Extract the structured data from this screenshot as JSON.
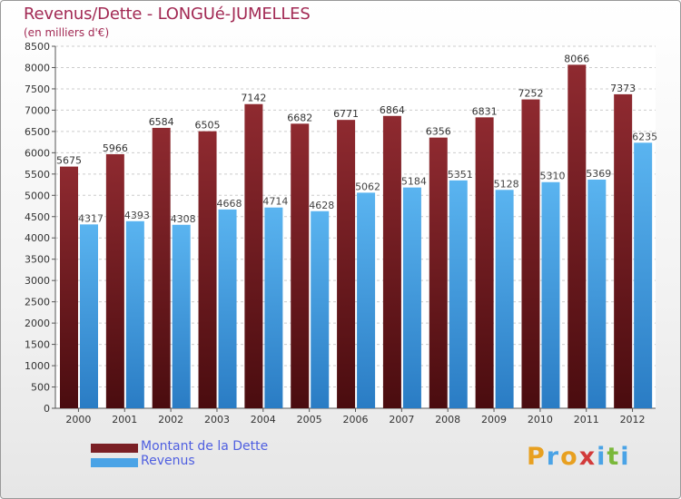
{
  "chart_data": {
    "type": "bar",
    "title": "Revenus/Dette - LONGUé-JUMELLES",
    "subtitle": "(en milliers d'€)",
    "categories": [
      "2000",
      "2001",
      "2002",
      "2003",
      "2004",
      "2005",
      "2006",
      "2007",
      "2008",
      "2009",
      "2010",
      "2011",
      "2012"
    ],
    "series": [
      {
        "name": "Montant de la Dette",
        "color": "#7a1f24",
        "values": [
          5675,
          5966,
          6584,
          6505,
          7142,
          6682,
          6771,
          6864,
          6356,
          6831,
          7252,
          8066,
          7373
        ]
      },
      {
        "name": "Revenus",
        "color": "#4aa3e6",
        "values": [
          4317,
          4393,
          4308,
          4668,
          4714,
          4628,
          5062,
          5184,
          5351,
          5128,
          5310,
          5369,
          6235
        ]
      }
    ],
    "ylim": [
      0,
      8500
    ],
    "yticks": [
      0,
      500,
      1000,
      1500,
      2000,
      2500,
      3000,
      3500,
      4000,
      4500,
      5000,
      5500,
      6000,
      6500,
      7000,
      7500,
      8000,
      8500
    ],
    "grid": true,
    "legend_position": "bottom-left"
  },
  "logo": {
    "text": "Proxiti",
    "letters": [
      {
        "ch": "P",
        "color": "#e8a020"
      },
      {
        "ch": "r",
        "color": "#4aa3e6"
      },
      {
        "ch": "o",
        "color": "#e8a020"
      },
      {
        "ch": "x",
        "color": "#d23a3a"
      },
      {
        "ch": "i",
        "color": "#4aa3e6"
      },
      {
        "ch": "t",
        "color": "#7ab83a"
      },
      {
        "ch": "i",
        "color": "#4aa3e6"
      }
    ]
  }
}
